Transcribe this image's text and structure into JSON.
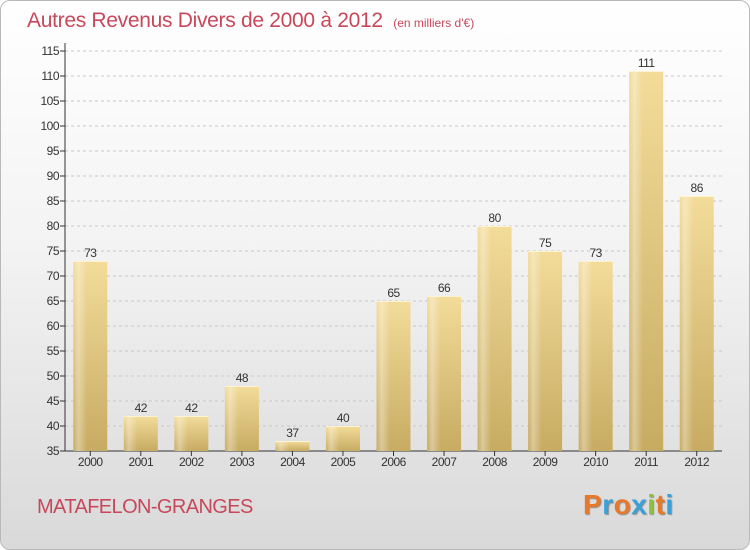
{
  "title": "Autres Revenus Divers de 2000 à 2012",
  "subtitle": "(en milliers d'€)",
  "commune": "MATAFELON-GRANGES",
  "logo": {
    "text": "Proxiti",
    "letters": [
      {
        "char": "P",
        "color": "#e8782a"
      },
      {
        "char": "r",
        "color": "#3aa0d8"
      },
      {
        "char": "o",
        "color": "#e8782a"
      },
      {
        "char": "x",
        "color": "#3aa0d8"
      },
      {
        "char": "i",
        "color": "#8dc03f"
      },
      {
        "char": "t",
        "color": "#e8782a"
      },
      {
        "char": "i",
        "color": "#3aa0d8"
      }
    ]
  },
  "colors": {
    "title": "#c8485b",
    "bar_top": "#f3dc9a",
    "bar_bottom": "#c7ab62",
    "grid": "#c8c8c8",
    "axis": "#333333"
  },
  "chart_data": {
    "type": "bar",
    "categories": [
      "2000",
      "2001",
      "2002",
      "2003",
      "2004",
      "2005",
      "2006",
      "2007",
      "2008",
      "2009",
      "2010",
      "2011",
      "2012"
    ],
    "values": [
      73,
      42,
      42,
      48,
      37,
      40,
      65,
      66,
      80,
      75,
      73,
      111,
      86
    ],
    "ylim": [
      35,
      115
    ],
    "yticks": [
      35,
      40,
      45,
      50,
      55,
      60,
      65,
      70,
      75,
      80,
      85,
      90,
      95,
      100,
      105,
      110,
      115
    ],
    "grid": true,
    "grid_style": "dashed",
    "data_labels": true,
    "legend": false
  }
}
